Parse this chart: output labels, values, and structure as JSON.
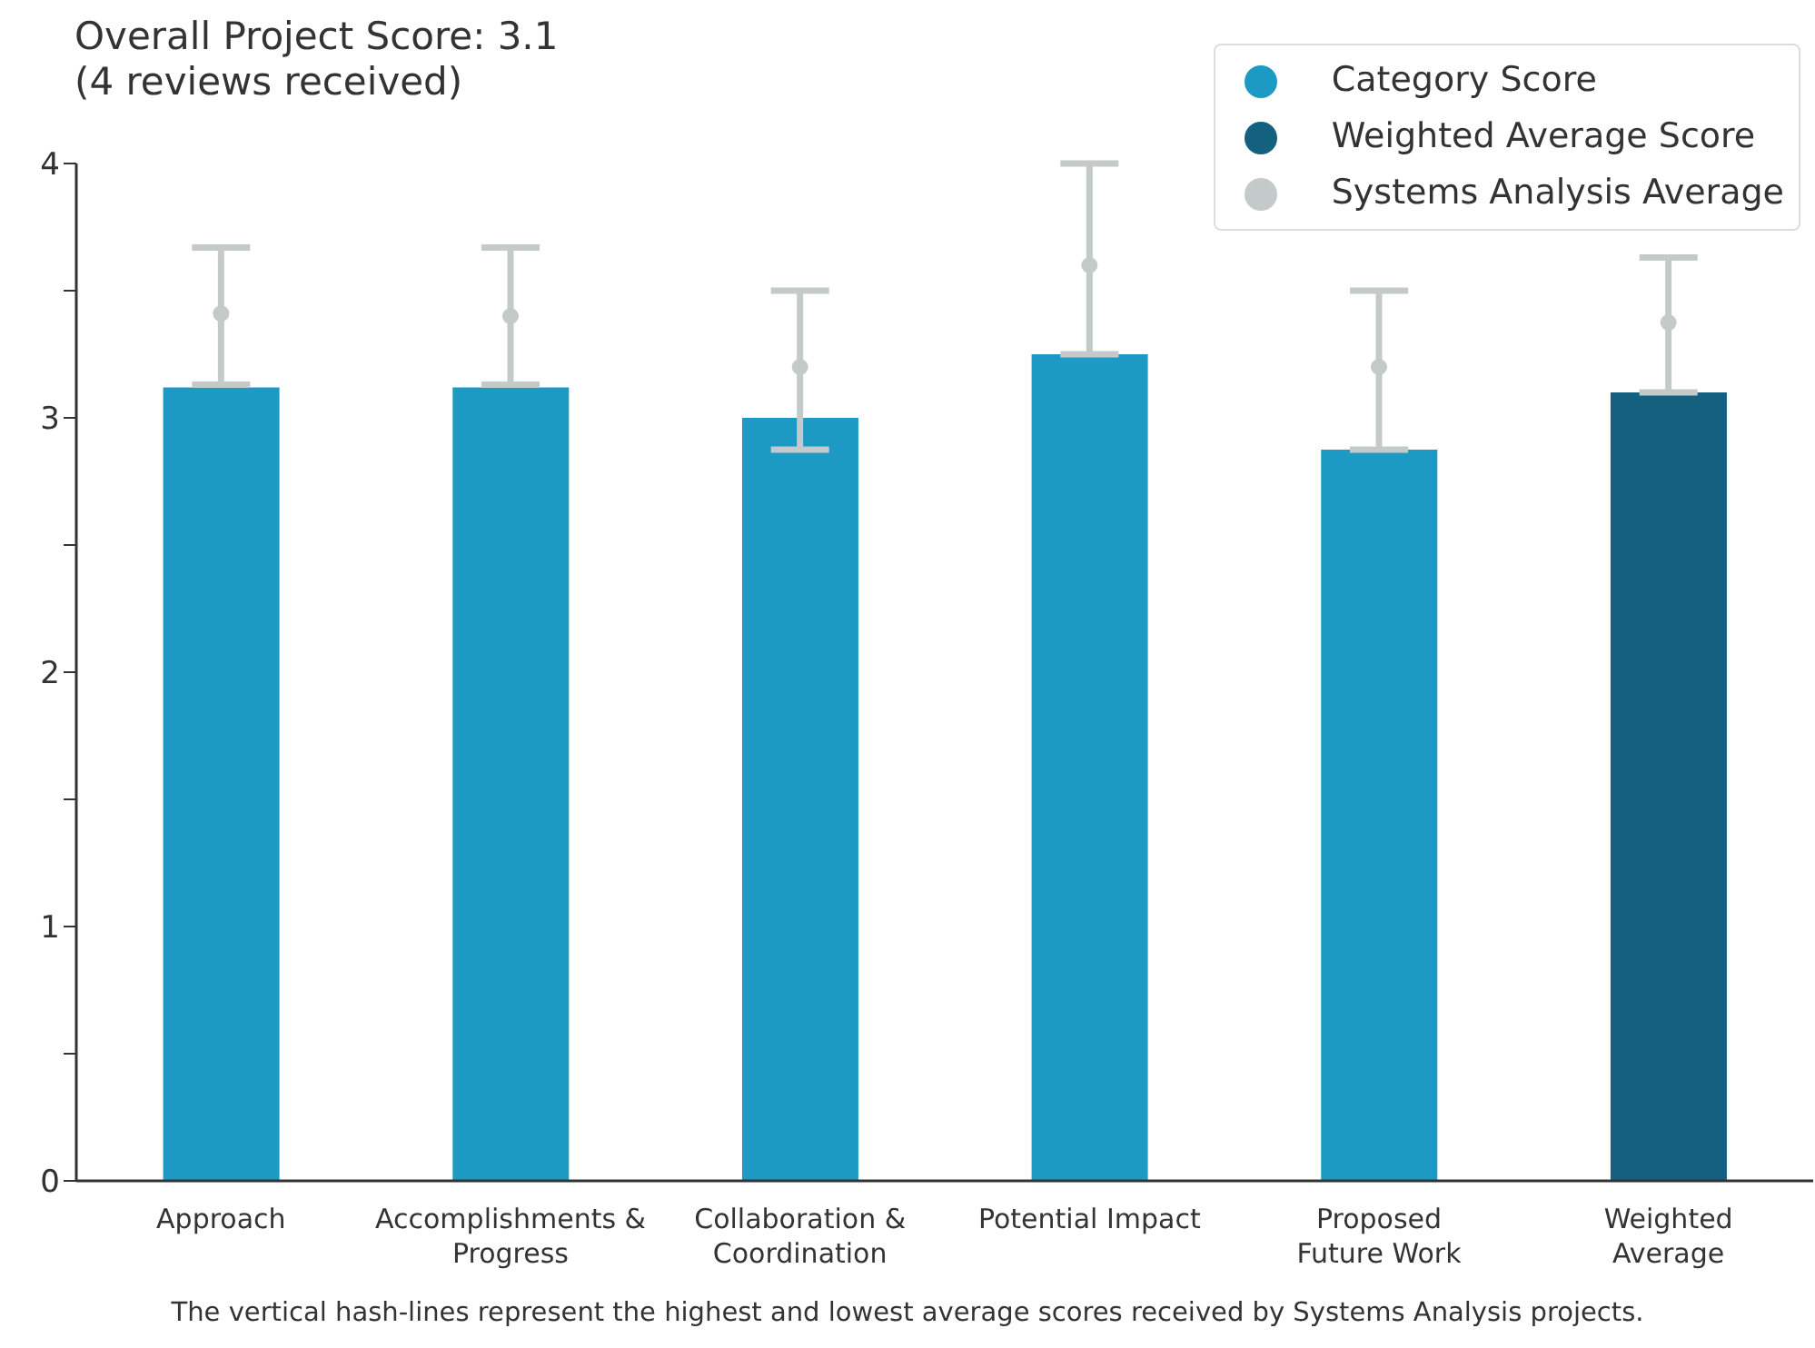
{
  "chart_data": {
    "type": "bar",
    "title": "Overall Project Score: 3.1",
    "subtitle": "(4 reviews received)",
    "categories": [
      "Approach",
      "Accomplishments &\nProgress",
      "Collaboration &\nCoordination",
      "Potential Impact",
      "Proposed\nFuture Work",
      "Weighted\nAverage"
    ],
    "series": [
      {
        "name": "Category Score",
        "color": "#1c9ac4",
        "values": [
          3.12,
          3.12,
          3.0,
          3.25,
          2.875,
          null
        ]
      },
      {
        "name": "Weighted Average Score",
        "color": "#13607f",
        "values": [
          null,
          null,
          null,
          null,
          null,
          3.1
        ]
      },
      {
        "name": "Systems Analysis Average",
        "type": "scatter",
        "color": "#c4c9c9",
        "values": [
          3.41,
          3.4,
          3.2,
          3.6,
          3.2,
          3.375
        ],
        "errors": [
          [
            3.13,
            3.67
          ],
          [
            3.13,
            3.67
          ],
          [
            2.875,
            3.5
          ],
          [
            3.25,
            4.0
          ],
          [
            2.875,
            3.5
          ],
          [
            3.1,
            3.63
          ]
        ]
      }
    ],
    "stacked": true,
    "ylim": [
      0,
      4
    ],
    "yticks": [
      0,
      {
        "value": 0.5,
        "label": null
      },
      1,
      {
        "value": 1.5,
        "label": null
      },
      2,
      {
        "value": 2.5,
        "label": null
      },
      3,
      {
        "value": 3.5,
        "label": null
      },
      4
    ],
    "grid": false,
    "legend": "top right",
    "marker": "circle",
    "annotations": [
      "The vertical hash-lines represent the highest and lowest average scores received by Systems Analysis projects."
    ]
  }
}
